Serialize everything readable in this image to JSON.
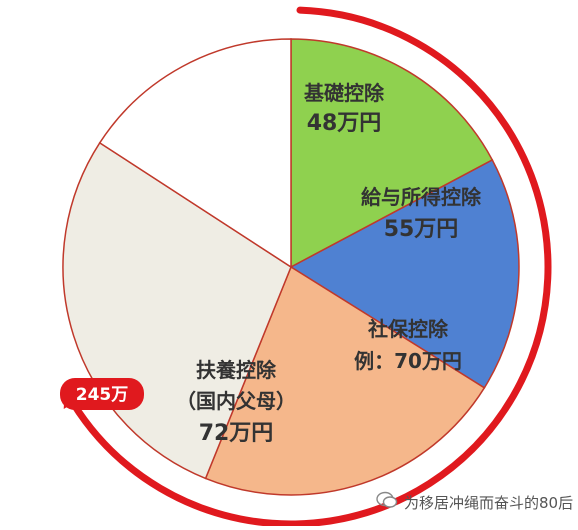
{
  "chart_data": {
    "type": "pie",
    "title": "",
    "total_label": "245万",
    "slices": [
      {
        "name": "基礎控除",
        "amount": "48万円",
        "value": 48,
        "color": "#8fd14f"
      },
      {
        "name": "給与所得控除",
        "amount": "55万円",
        "value": 55,
        "color": "#4f81d2"
      },
      {
        "name": "社保控除例：70万円",
        "amount": "",
        "value": 70,
        "color": "#f5b78b"
      },
      {
        "name": "扶養控除（国内父母）",
        "amount": "72万円",
        "value": 72,
        "color": "#efede4"
      },
      {
        "name": "",
        "amount": "",
        "value": 0,
        "color": "#ffffff"
      }
    ],
    "label_lines": {
      "s0": [
        "基礎控除",
        "48万円"
      ],
      "s1": [
        "給与所得控除",
        "55万円"
      ],
      "s2": [
        "社保控除",
        "例：70万円"
      ],
      "s3": [
        "扶養控除",
        "（国内父母）",
        "72万円"
      ]
    },
    "accent_color": "#e0191e",
    "outline_color": "#c0392b"
  },
  "watermark": {
    "text": "为移居冲绳而奋斗的80后"
  }
}
